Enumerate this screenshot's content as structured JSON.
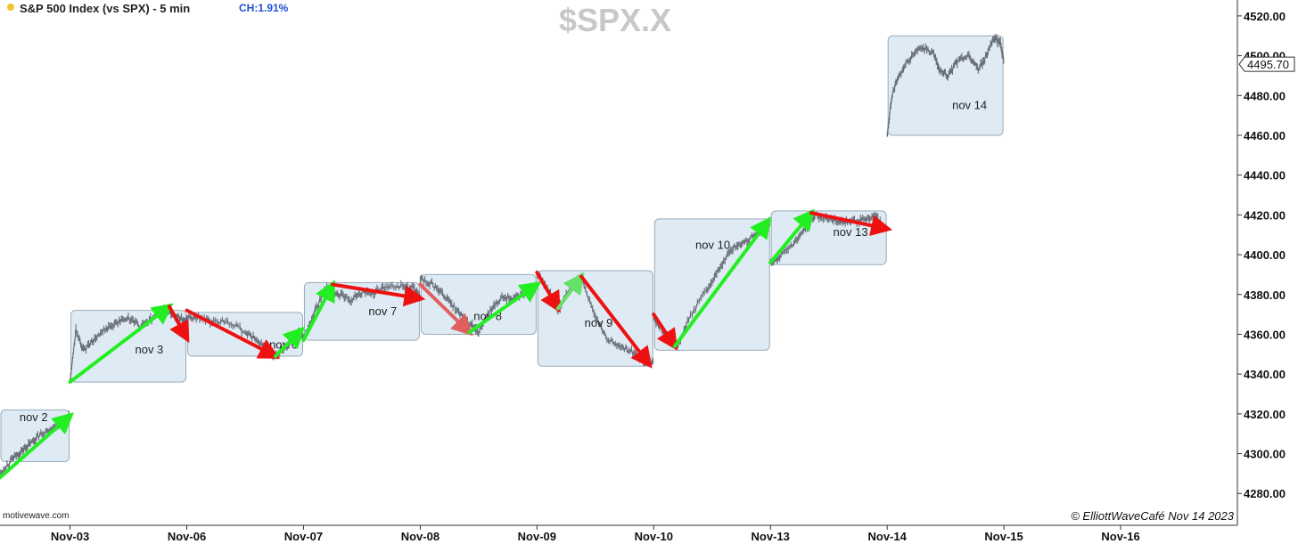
{
  "header": {
    "title": "S&P 500 Index (vs SPX) - 5 min",
    "change": "CH:1.91%",
    "symbol": "$SPX.X",
    "source": "motivewave.com",
    "copyright": "© ElliottWaveCafé Nov 14 2023"
  },
  "colors": {
    "price": "#6a6e78",
    "box_fill": "#deebf4",
    "box_stroke": "#9aaab8",
    "up_arrow": "#22ee22",
    "down_arrow": "#ee1111",
    "down_arrow_faded": "#e06060",
    "up_arrow_faded": "#66e066",
    "axis": "#333333"
  },
  "chart_data": {
    "type": "line",
    "title": "$SPX.X",
    "xlabel": "",
    "ylabel": "",
    "ylim": [
      4264,
      4528
    ],
    "xlim": [
      -0.6,
      10.0
    ],
    "yticks": [
      4280,
      4300,
      4320,
      4340,
      4360,
      4380,
      4400,
      4420,
      4440,
      4460,
      4480,
      4500,
      4520
    ],
    "ytick_labels": [
      "4280.00",
      "4300.00",
      "4320.00",
      "4340.00",
      "4360.00",
      "4380.00",
      "4400.00",
      "4420.00",
      "4440.00",
      "4460.00",
      "4480.00",
      "4500.00",
      "4520.00"
    ],
    "xticks": [
      0,
      1,
      2,
      3,
      4,
      5,
      6,
      7,
      8,
      9
    ],
    "xtick_labels": [
      "Nov-03",
      "Nov-06",
      "Nov-07",
      "Nov-08",
      "Nov-09",
      "Nov-10",
      "Nov-13",
      "Nov-14",
      "Nov-15",
      "Nov-16"
    ],
    "last_price": "4495.70",
    "last_value": 4495.7,
    "sessions": [
      {
        "label": "nov 2",
        "x": [
          -0.6,
          0.0
        ],
        "y": [
          4296,
          4322
        ],
        "path": [
          [
            -0.6,
            4290
          ],
          [
            -0.5,
            4297
          ],
          [
            -0.42,
            4301
          ],
          [
            -0.34,
            4305
          ],
          [
            -0.25,
            4310
          ],
          [
            -0.15,
            4313
          ],
          [
            -0.05,
            4316
          ],
          [
            0.0,
            4319
          ]
        ]
      },
      {
        "label": "nov 3",
        "x": [
          0.0,
          1.0
        ],
        "y": [
          4336,
          4372
        ],
        "path": [
          [
            0.0,
            4336
          ],
          [
            0.05,
            4362
          ],
          [
            0.12,
            4352
          ],
          [
            0.2,
            4357
          ],
          [
            0.3,
            4362
          ],
          [
            0.4,
            4366
          ],
          [
            0.5,
            4368
          ],
          [
            0.6,
            4364
          ],
          [
            0.7,
            4368
          ],
          [
            0.8,
            4373
          ],
          [
            0.88,
            4370
          ],
          [
            0.95,
            4368
          ],
          [
            1.0,
            4366
          ]
        ]
      },
      {
        "label": "nov 6",
        "x": [
          1.0,
          2.0
        ],
        "y": [
          4349,
          4371
        ],
        "path": [
          [
            1.0,
            4368
          ],
          [
            1.1,
            4369
          ],
          [
            1.2,
            4366
          ],
          [
            1.35,
            4367
          ],
          [
            1.5,
            4361
          ],
          [
            1.6,
            4357
          ],
          [
            1.7,
            4352
          ],
          [
            1.76,
            4349
          ],
          [
            1.82,
            4352
          ],
          [
            1.9,
            4357
          ],
          [
            1.96,
            4361
          ],
          [
            2.0,
            4360
          ]
        ]
      },
      {
        "label": "nov 7",
        "x": [
          2.0,
          3.0
        ],
        "y": [
          4357,
          4386
        ],
        "path": [
          [
            2.0,
            4358
          ],
          [
            2.1,
            4372
          ],
          [
            2.2,
            4384
          ],
          [
            2.3,
            4380
          ],
          [
            2.4,
            4377
          ],
          [
            2.5,
            4381
          ],
          [
            2.6,
            4381
          ],
          [
            2.7,
            4384
          ],
          [
            2.85,
            4384
          ],
          [
            2.95,
            4383
          ],
          [
            3.0,
            4378
          ]
        ]
      },
      {
        "label": "nov 8",
        "x": [
          3.0,
          4.0
        ],
        "y": [
          4360,
          4390
        ],
        "path": [
          [
            3.0,
            4388
          ],
          [
            3.1,
            4385
          ],
          [
            3.2,
            4380
          ],
          [
            3.3,
            4373
          ],
          [
            3.4,
            4366
          ],
          [
            3.45,
            4364
          ],
          [
            3.5,
            4361
          ],
          [
            3.6,
            4372
          ],
          [
            3.7,
            4378
          ],
          [
            3.8,
            4378
          ],
          [
            3.9,
            4381
          ],
          [
            4.0,
            4384
          ]
        ]
      },
      {
        "label": "nov 9",
        "x": [
          4.0,
          5.0
        ],
        "y": [
          4344,
          4392
        ],
        "path": [
          [
            4.0,
            4391
          ],
          [
            4.1,
            4382
          ],
          [
            4.18,
            4372
          ],
          [
            4.28,
            4383
          ],
          [
            4.38,
            4389
          ],
          [
            4.5,
            4368
          ],
          [
            4.6,
            4358
          ],
          [
            4.72,
            4354
          ],
          [
            4.82,
            4351
          ],
          [
            4.92,
            4346
          ],
          [
            5.0,
            4346
          ]
        ]
      },
      {
        "label": "nov 10",
        "x": [
          5.0,
          6.0
        ],
        "y": [
          4352,
          4418
        ],
        "path": [
          [
            5.0,
            4368
          ],
          [
            5.1,
            4360
          ],
          [
            5.2,
            4353
          ],
          [
            5.3,
            4368
          ],
          [
            5.45,
            4382
          ],
          [
            5.55,
            4392
          ],
          [
            5.65,
            4402
          ],
          [
            5.75,
            4406
          ],
          [
            5.85,
            4409
          ],
          [
            5.95,
            4414
          ],
          [
            6.0,
            4417
          ]
        ]
      },
      {
        "label": "nov 13",
        "x": [
          6.0,
          7.0
        ],
        "y": [
          4395,
          4422
        ],
        "path": [
          [
            6.0,
            4396
          ],
          [
            6.08,
            4399
          ],
          [
            6.2,
            4406
          ],
          [
            6.3,
            4413
          ],
          [
            6.38,
            4420
          ],
          [
            6.5,
            4418
          ],
          [
            6.6,
            4416
          ],
          [
            6.7,
            4417
          ],
          [
            6.8,
            4417
          ],
          [
            6.9,
            4419
          ],
          [
            7.0,
            4413
          ]
        ]
      },
      {
        "label": "nov 14",
        "x": [
          7.0,
          8.0
        ],
        "y": [
          4460,
          4510
        ],
        "path": [
          [
            7.0,
            4460
          ],
          [
            7.04,
            4480
          ],
          [
            7.1,
            4490
          ],
          [
            7.2,
            4499
          ],
          [
            7.3,
            4504
          ],
          [
            7.4,
            4501
          ],
          [
            7.45,
            4493
          ],
          [
            7.52,
            4490
          ],
          [
            7.6,
            4497
          ],
          [
            7.7,
            4500
          ],
          [
            7.78,
            4493
          ],
          [
            7.85,
            4500
          ],
          [
            7.92,
            4509
          ],
          [
            7.97,
            4506
          ],
          [
            8.0,
            4496
          ]
        ]
      }
    ],
    "arrows": [
      {
        "dir": "up",
        "from": [
          -0.6,
          4288
        ],
        "to": [
          0.0,
          4319
        ]
      },
      {
        "dir": "up",
        "from": [
          0.0,
          4336
        ],
        "to": [
          0.85,
          4374
        ]
      },
      {
        "dir": "down",
        "from": [
          0.85,
          4374
        ],
        "to": [
          1.0,
          4358
        ]
      },
      {
        "dir": "down",
        "from": [
          1.0,
          4372
        ],
        "to": [
          1.76,
          4349
        ]
      },
      {
        "dir": "up",
        "from": [
          1.76,
          4349
        ],
        "to": [
          1.98,
          4362
        ]
      },
      {
        "dir": "up",
        "from": [
          2.0,
          4357
        ],
        "to": [
          2.25,
          4385
        ]
      },
      {
        "dir": "down",
        "from": [
          2.25,
          4385
        ],
        "to": [
          3.0,
          4378
        ]
      },
      {
        "dir": "down_faded",
        "from": [
          3.0,
          4385
        ],
        "to": [
          3.42,
          4361
        ]
      },
      {
        "dir": "up",
        "from": [
          3.42,
          4361
        ],
        "to": [
          4.0,
          4385
        ]
      },
      {
        "dir": "down",
        "from": [
          4.0,
          4391
        ],
        "to": [
          4.18,
          4373
        ]
      },
      {
        "dir": "up_faded",
        "from": [
          4.18,
          4373
        ],
        "to": [
          4.38,
          4389
        ]
      },
      {
        "dir": "down",
        "from": [
          4.38,
          4389
        ],
        "to": [
          4.96,
          4345
        ]
      },
      {
        "dir": "down",
        "from": [
          5.0,
          4370
        ],
        "to": [
          5.18,
          4354
        ]
      },
      {
        "dir": "up",
        "from": [
          5.18,
          4354
        ],
        "to": [
          5.98,
          4417
        ]
      },
      {
        "dir": "up",
        "from": [
          6.0,
          4396
        ],
        "to": [
          6.35,
          4421
        ]
      },
      {
        "dir": "down",
        "from": [
          6.35,
          4421
        ],
        "to": [
          7.0,
          4413
        ]
      }
    ]
  }
}
